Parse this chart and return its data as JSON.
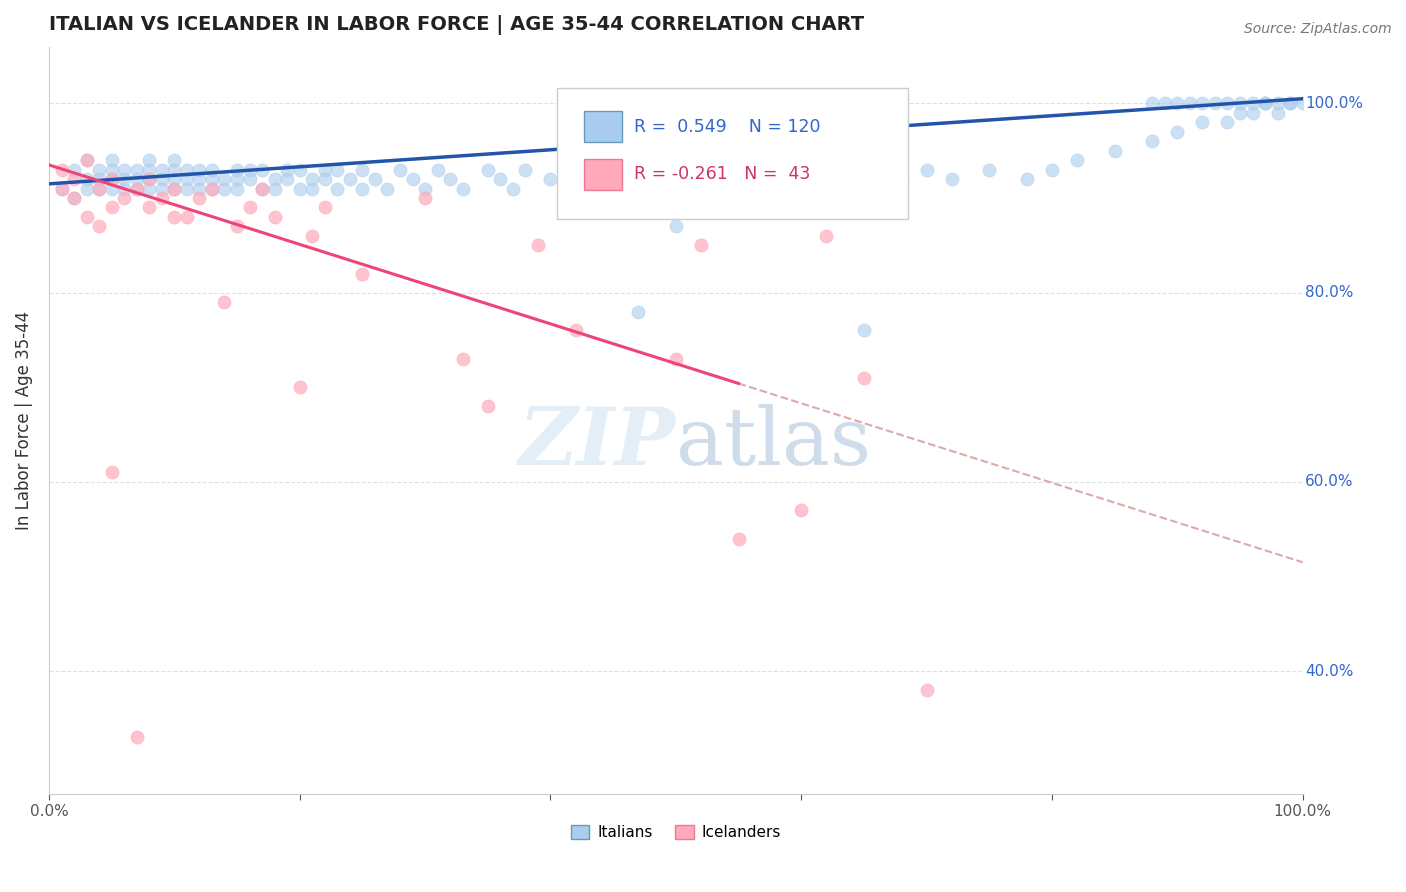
{
  "title": "ITALIAN VS ICELANDER IN LABOR FORCE | AGE 35-44 CORRELATION CHART",
  "source": "Source: ZipAtlas.com",
  "ylabel": "In Labor Force | Age 35-44",
  "xlim": [
    0.0,
    1.0
  ],
  "ylim": [
    0.27,
    1.06
  ],
  "yticks": [
    0.4,
    0.6,
    0.8,
    1.0
  ],
  "ytick_labels": [
    "40.0%",
    "60.0%",
    "80.0%",
    "100.0%"
  ],
  "xticks": [
    0.0,
    0.2,
    0.4,
    0.6,
    0.8,
    1.0
  ],
  "xtick_labels": [
    "0.0%",
    "",
    "",
    "",
    "",
    "100.0%"
  ],
  "italian_R": 0.549,
  "italian_N": 120,
  "icelander_R": -0.261,
  "icelander_N": 43,
  "blue_dot_color": "#aaccee",
  "blue_line_color": "#2255aa",
  "pink_dot_color": "#ffaabb",
  "pink_line_color": "#ee4477",
  "dash_line_color": "#ddaaaa",
  "watermark_color": "#cce0f0",
  "background_color": "#ffffff",
  "grid_color": "#dddddd",
  "title_fontsize": 14,
  "legend_R_color_blue": "#3366cc",
  "legend_R_color_pink": "#cc3366",
  "italian_x": [
    0.01,
    0.02,
    0.02,
    0.03,
    0.03,
    0.03,
    0.04,
    0.04,
    0.04,
    0.05,
    0.05,
    0.05,
    0.05,
    0.06,
    0.06,
    0.06,
    0.07,
    0.07,
    0.07,
    0.08,
    0.08,
    0.08,
    0.08,
    0.09,
    0.09,
    0.09,
    0.1,
    0.1,
    0.1,
    0.1,
    0.11,
    0.11,
    0.11,
    0.12,
    0.12,
    0.12,
    0.13,
    0.13,
    0.13,
    0.14,
    0.14,
    0.15,
    0.15,
    0.15,
    0.16,
    0.16,
    0.17,
    0.17,
    0.18,
    0.18,
    0.19,
    0.19,
    0.2,
    0.2,
    0.21,
    0.21,
    0.22,
    0.22,
    0.23,
    0.23,
    0.24,
    0.25,
    0.25,
    0.26,
    0.27,
    0.28,
    0.29,
    0.3,
    0.31,
    0.32,
    0.33,
    0.35,
    0.36,
    0.37,
    0.38,
    0.4,
    0.42,
    0.44,
    0.45,
    0.47,
    0.48,
    0.5,
    0.52,
    0.54,
    0.55,
    0.57,
    0.58,
    0.6,
    0.62,
    0.65,
    0.68,
    0.7,
    0.72,
    0.75,
    0.78,
    0.8,
    0.82,
    0.85,
    0.88,
    0.9,
    0.92,
    0.94,
    0.95,
    0.96,
    0.97,
    0.98,
    0.99,
    1.0,
    0.99,
    0.98,
    0.97,
    0.96,
    0.95,
    0.94,
    0.93,
    0.92,
    0.91,
    0.9,
    0.89,
    0.88
  ],
  "italian_y": [
    0.91,
    0.9,
    0.93,
    0.92,
    0.91,
    0.94,
    0.92,
    0.93,
    0.91,
    0.92,
    0.93,
    0.91,
    0.94,
    0.92,
    0.91,
    0.93,
    0.92,
    0.91,
    0.93,
    0.92,
    0.91,
    0.93,
    0.94,
    0.92,
    0.91,
    0.93,
    0.92,
    0.91,
    0.93,
    0.94,
    0.92,
    0.91,
    0.93,
    0.92,
    0.91,
    0.93,
    0.92,
    0.91,
    0.93,
    0.92,
    0.91,
    0.93,
    0.92,
    0.91,
    0.93,
    0.92,
    0.91,
    0.93,
    0.92,
    0.91,
    0.93,
    0.92,
    0.91,
    0.93,
    0.92,
    0.91,
    0.93,
    0.92,
    0.91,
    0.93,
    0.92,
    0.91,
    0.93,
    0.92,
    0.91,
    0.93,
    0.92,
    0.91,
    0.93,
    0.92,
    0.91,
    0.93,
    0.92,
    0.91,
    0.93,
    0.92,
    0.91,
    0.92,
    0.93,
    0.78,
    0.92,
    0.87,
    0.92,
    0.91,
    0.93,
    0.92,
    0.91,
    0.93,
    0.92,
    0.76,
    0.92,
    0.93,
    0.92,
    0.93,
    0.92,
    0.93,
    0.94,
    0.95,
    0.96,
    0.97,
    0.98,
    0.98,
    0.99,
    0.99,
    1.0,
    0.99,
    1.0,
    1.0,
    1.0,
    1.0,
    1.0,
    1.0,
    1.0,
    1.0,
    1.0,
    1.0,
    1.0,
    1.0,
    1.0,
    1.0
  ],
  "icelander_x": [
    0.01,
    0.01,
    0.02,
    0.02,
    0.03,
    0.03,
    0.04,
    0.04,
    0.05,
    0.05,
    0.06,
    0.07,
    0.08,
    0.08,
    0.09,
    0.1,
    0.1,
    0.11,
    0.12,
    0.13,
    0.14,
    0.15,
    0.16,
    0.17,
    0.18,
    0.2,
    0.21,
    0.22,
    0.25,
    0.3,
    0.33,
    0.35,
    0.39,
    0.42,
    0.5,
    0.52,
    0.55,
    0.6,
    0.62,
    0.65,
    0.7,
    0.05,
    0.07
  ],
  "icelander_y": [
    0.93,
    0.91,
    0.9,
    0.92,
    0.94,
    0.88,
    0.91,
    0.87,
    0.89,
    0.92,
    0.9,
    0.91,
    0.89,
    0.92,
    0.9,
    0.88,
    0.91,
    0.88,
    0.9,
    0.91,
    0.79,
    0.87,
    0.89,
    0.91,
    0.88,
    0.7,
    0.86,
    0.89,
    0.82,
    0.9,
    0.73,
    0.68,
    0.85,
    0.76,
    0.73,
    0.85,
    0.54,
    0.57,
    0.86,
    0.71,
    0.38,
    0.61,
    0.33
  ]
}
